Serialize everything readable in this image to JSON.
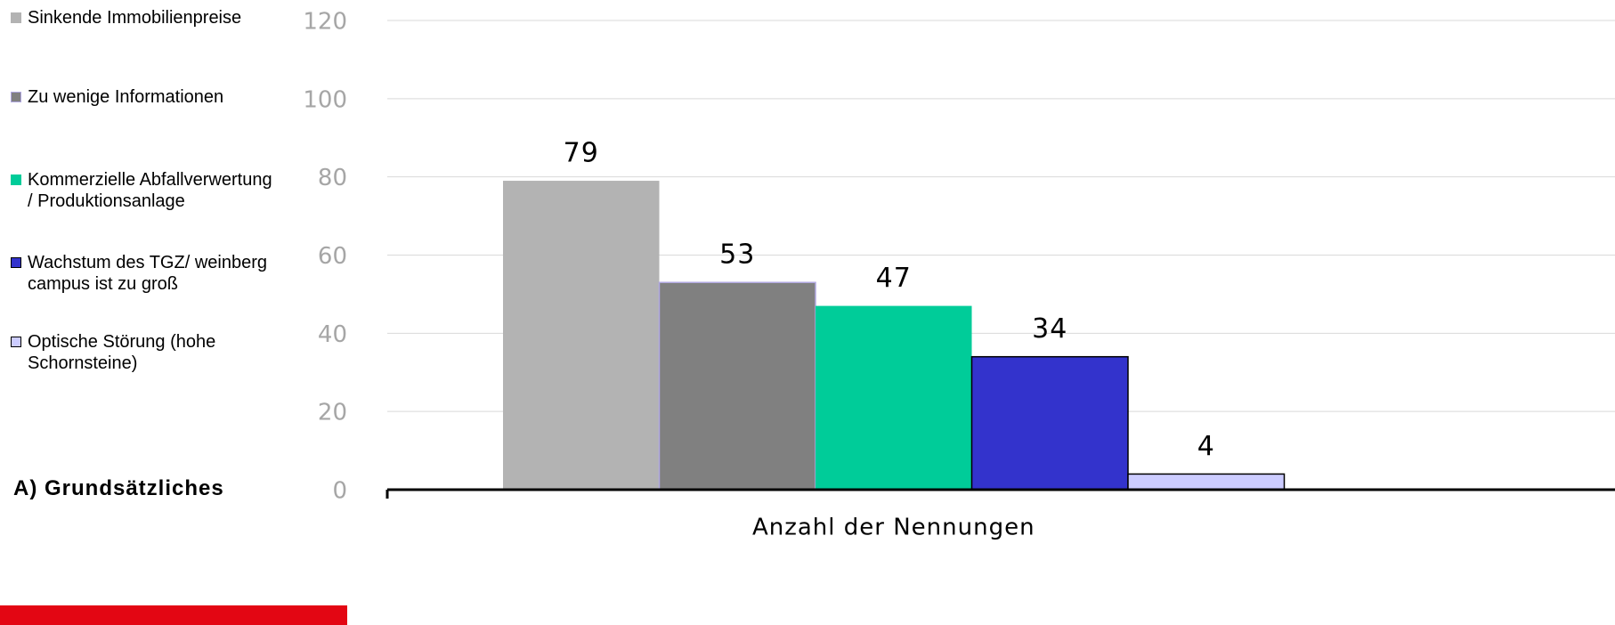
{
  "chart_data": {
    "type": "bar",
    "section_title": "A) Grundsätzliches",
    "categories": [
      "Anzahl der Nennungen"
    ],
    "series": [
      {
        "name": "Sinkende Immobilienpreise",
        "color": "#b3b3b3",
        "values": [
          79
        ]
      },
      {
        "name": "Zu wenige Informationen",
        "color": "#808080",
        "values": [
          53
        ]
      },
      {
        "name": "Kommerzielle Abfallverwertung / Produktionsanlage",
        "color": "#00cc99",
        "values": [
          47
        ]
      },
      {
        "name": "Wachstum des TGZ/ weinberg campus ist zu groß",
        "color": "#3333cc",
        "values": [
          34
        ]
      },
      {
        "name": "Optische Störung (hohe Schornsteine)",
        "color": "#ccccff",
        "values": [
          4
        ]
      }
    ],
    "ylim": [
      0,
      120
    ],
    "yticks": [
      0,
      20,
      40,
      60,
      80,
      100,
      120
    ],
    "grid": true,
    "legend": "left"
  }
}
